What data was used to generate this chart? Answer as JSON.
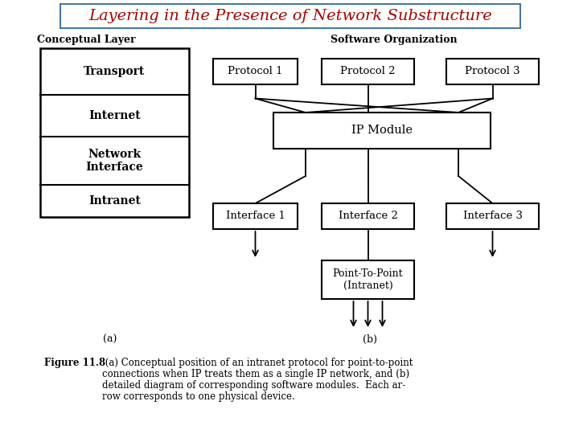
{
  "title": "Layering in the Presence of Network Substructure",
  "title_color": "#aa0000",
  "title_box_color": "#4477aa",
  "bg_color": "#ffffff",
  "conceptual_label": "Conceptual Layer",
  "software_label": "Software Organization",
  "layers": [
    "Transport",
    "Internet",
    "Network\nInterface",
    "Intranet"
  ],
  "label_a": "(a)",
  "label_b": "(b)",
  "fig_width": 7.2,
  "fig_height": 5.4,
  "fig_dpi": 100
}
